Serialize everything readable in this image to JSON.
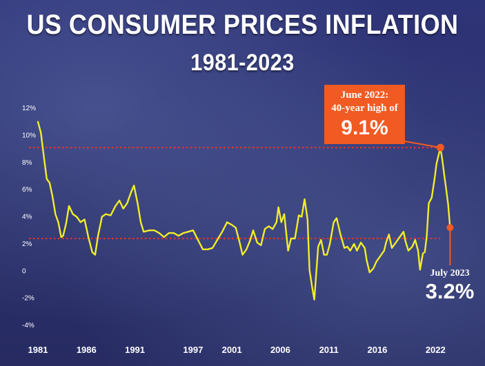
{
  "chart_data": {
    "type": "line",
    "title": "US CONSUMER PRICES INFLATION",
    "subtitle": "1981-2023",
    "xlabel": "",
    "ylabel": "",
    "xlim": [
      1981,
      2023.9
    ],
    "ylim": [
      -4,
      12
    ],
    "y_ticks": [
      12,
      10,
      8,
      6,
      4,
      2,
      0,
      -2,
      -4
    ],
    "y_tick_labels": [
      "12%",
      "10%",
      "8%",
      "6%",
      "4%",
      "2%",
      "0",
      "-2%",
      "-4%"
    ],
    "x_ticks": [
      1981,
      1986,
      1991,
      1997,
      2001,
      2006,
      2011,
      2016,
      2022
    ],
    "x_tick_labels": [
      "1981",
      "1986",
      "1991",
      "1997",
      "2001",
      "2006",
      "2011",
      "2016",
      "2022"
    ],
    "grid": false,
    "reference_lines": [
      9.1,
      2.4
    ],
    "series": [
      {
        "color": "#f2ee28",
        "points": [
          [
            1981.0,
            11.0
          ],
          [
            1981.3,
            10.2
          ],
          [
            1981.6,
            8.5
          ],
          [
            1981.9,
            6.8
          ],
          [
            1982.2,
            6.5
          ],
          [
            1982.5,
            5.5
          ],
          [
            1982.8,
            4.2
          ],
          [
            1983.1,
            3.6
          ],
          [
            1983.4,
            2.5
          ],
          [
            1983.6,
            2.6
          ],
          [
            1983.9,
            3.5
          ],
          [
            1984.2,
            4.8
          ],
          [
            1984.6,
            4.2
          ],
          [
            1985.0,
            4.0
          ],
          [
            1985.4,
            3.6
          ],
          [
            1985.8,
            3.8
          ],
          [
            1986.2,
            2.5
          ],
          [
            1986.6,
            1.4
          ],
          [
            1986.9,
            1.2
          ],
          [
            1987.2,
            2.6
          ],
          [
            1987.6,
            4.0
          ],
          [
            1988.0,
            4.2
          ],
          [
            1988.5,
            4.1
          ],
          [
            1989.0,
            4.8
          ],
          [
            1989.4,
            5.2
          ],
          [
            1989.8,
            4.6
          ],
          [
            1990.2,
            5.0
          ],
          [
            1990.6,
            5.8
          ],
          [
            1990.9,
            6.3
          ],
          [
            1991.3,
            4.9
          ],
          [
            1991.6,
            3.6
          ],
          [
            1991.9,
            2.9
          ],
          [
            1992.5,
            3.0
          ],
          [
            1993.0,
            3.0
          ],
          [
            1993.5,
            2.8
          ],
          [
            1994.0,
            2.5
          ],
          [
            1994.5,
            2.8
          ],
          [
            1995.0,
            2.8
          ],
          [
            1995.5,
            2.6
          ],
          [
            1996.0,
            2.8
          ],
          [
            1996.5,
            2.9
          ],
          [
            1997.0,
            3.0
          ],
          [
            1997.5,
            2.3
          ],
          [
            1998.0,
            1.6
          ],
          [
            1998.5,
            1.6
          ],
          [
            1999.0,
            1.7
          ],
          [
            1999.5,
            2.3
          ],
          [
            2000.0,
            2.9
          ],
          [
            2000.5,
            3.6
          ],
          [
            2001.0,
            3.4
          ],
          [
            2001.4,
            3.2
          ],
          [
            2001.8,
            2.1
          ],
          [
            2002.1,
            1.2
          ],
          [
            2002.5,
            1.6
          ],
          [
            2002.9,
            2.3
          ],
          [
            2003.2,
            3.0
          ],
          [
            2003.6,
            2.1
          ],
          [
            2004.0,
            1.9
          ],
          [
            2004.4,
            3.1
          ],
          [
            2004.8,
            3.3
          ],
          [
            2005.2,
            3.1
          ],
          [
            2005.6,
            3.6
          ],
          [
            2005.8,
            4.7
          ],
          [
            2006.1,
            3.6
          ],
          [
            2006.4,
            4.2
          ],
          [
            2006.8,
            1.5
          ],
          [
            2007.1,
            2.4
          ],
          [
            2007.5,
            2.4
          ],
          [
            2007.9,
            4.1
          ],
          [
            2008.2,
            4.0
          ],
          [
            2008.5,
            5.3
          ],
          [
            2008.8,
            3.8
          ],
          [
            2009.0,
            0.1
          ],
          [
            2009.3,
            -1.3
          ],
          [
            2009.5,
            -2.1
          ],
          [
            2009.9,
            1.8
          ],
          [
            2010.2,
            2.3
          ],
          [
            2010.5,
            1.2
          ],
          [
            2010.8,
            1.2
          ],
          [
            2011.1,
            2.0
          ],
          [
            2011.5,
            3.6
          ],
          [
            2011.8,
            3.9
          ],
          [
            2012.2,
            2.7
          ],
          [
            2012.6,
            1.7
          ],
          [
            2012.9,
            1.8
          ],
          [
            2013.2,
            1.5
          ],
          [
            2013.6,
            2.0
          ],
          [
            2013.9,
            1.5
          ],
          [
            2014.3,
            2.1
          ],
          [
            2014.7,
            1.7
          ],
          [
            2014.9,
            0.8
          ],
          [
            2015.2,
            -0.1
          ],
          [
            2015.6,
            0.2
          ],
          [
            2015.9,
            0.7
          ],
          [
            2016.3,
            1.1
          ],
          [
            2016.7,
            1.5
          ],
          [
            2016.9,
            2.1
          ],
          [
            2017.2,
            2.7
          ],
          [
            2017.5,
            1.7
          ],
          [
            2017.9,
            2.1
          ],
          [
            2018.3,
            2.5
          ],
          [
            2018.7,
            2.9
          ],
          [
            2018.9,
            2.2
          ],
          [
            2019.2,
            1.5
          ],
          [
            2019.6,
            1.8
          ],
          [
            2019.9,
            2.3
          ],
          [
            2020.2,
            1.5
          ],
          [
            2020.4,
            0.1
          ],
          [
            2020.7,
            1.3
          ],
          [
            2020.9,
            1.4
          ],
          [
            2021.1,
            2.6
          ],
          [
            2021.3,
            5.0
          ],
          [
            2021.6,
            5.4
          ],
          [
            2021.9,
            6.8
          ],
          [
            2022.1,
            7.9
          ],
          [
            2022.3,
            8.5
          ],
          [
            2022.5,
            9.1
          ],
          [
            2022.7,
            8.2
          ],
          [
            2022.9,
            7.1
          ],
          [
            2023.1,
            6.0
          ],
          [
            2023.3,
            4.9
          ],
          [
            2023.5,
            3.2
          ]
        ]
      }
    ],
    "annotations": [
      {
        "line1": "June 2022:",
        "line2": "40-year high of",
        "value": "9.1%",
        "x": 2022.5,
        "y": 9.1,
        "color": "#f15a22"
      },
      {
        "label": "July 2023",
        "value": "3.2%",
        "x": 2023.5,
        "y": 3.2,
        "color": "#f15a22"
      }
    ]
  }
}
